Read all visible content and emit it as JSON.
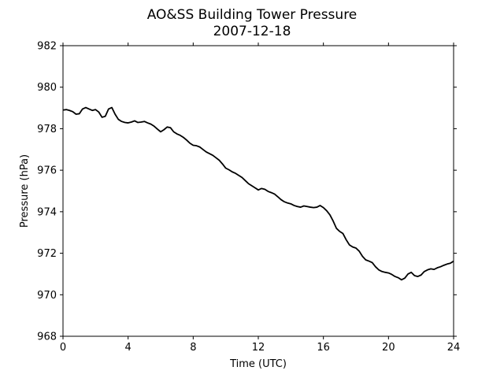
{
  "chart_data": {
    "type": "line",
    "title": "AO&SS Building Tower Pressure",
    "subtitle": "2007-12-18",
    "xlabel": "Time (UTC)",
    "ylabel": "Pressure (hPa)",
    "xlim": [
      0,
      24
    ],
    "ylim": [
      968,
      982
    ],
    "xticks": [
      0,
      4,
      8,
      12,
      16,
      20,
      24
    ],
    "yticks": [
      968,
      970,
      972,
      974,
      976,
      978,
      980,
      982
    ],
    "grid": false,
    "legend": "none",
    "line_color": "#000000",
    "series": [
      {
        "x": [
          0,
          0.2,
          0.4,
          0.6,
          0.8,
          1.0,
          1.2,
          1.4,
          1.6,
          1.8,
          2.0,
          2.2,
          2.4,
          2.6,
          2.8,
          3.0,
          3.2,
          3.4,
          3.6,
          3.8,
          4.0,
          4.2,
          4.4,
          4.6,
          4.8,
          5.0,
          5.2,
          5.4,
          5.6,
          5.8,
          6.0,
          6.2,
          6.4,
          6.6,
          6.8,
          7.0,
          7.2,
          7.4,
          7.6,
          7.8,
          8.0,
          8.2,
          8.4,
          8.6,
          8.8,
          9.0,
          9.2,
          9.4,
          9.6,
          9.8,
          10.0,
          10.2,
          10.4,
          10.6,
          10.8,
          11.0,
          11.2,
          11.4,
          11.6,
          11.8,
          12.0,
          12.2,
          12.4,
          12.6,
          12.8,
          13.0,
          13.2,
          13.4,
          13.6,
          13.8,
          14.0,
          14.2,
          14.4,
          14.6,
          14.8,
          15.0,
          15.2,
          15.4,
          15.6,
          15.8,
          16.0,
          16.2,
          16.4,
          16.6,
          16.8,
          17.0,
          17.2,
          17.4,
          17.6,
          17.8,
          18.0,
          18.2,
          18.4,
          18.6,
          18.8,
          19.0,
          19.2,
          19.4,
          19.6,
          19.8,
          20.0,
          20.2,
          20.4,
          20.6,
          20.8,
          21.0,
          21.2,
          21.4,
          21.6,
          21.8,
          22.0,
          22.2,
          22.4,
          22.6,
          22.8,
          23.0,
          23.2,
          23.4,
          23.6,
          23.8,
          24.0
        ],
        "values": [
          978.9,
          978.92,
          978.88,
          978.82,
          978.7,
          978.72,
          978.95,
          979.02,
          978.95,
          978.88,
          978.92,
          978.8,
          978.55,
          978.6,
          978.95,
          979.02,
          978.7,
          978.45,
          978.35,
          978.3,
          978.28,
          978.32,
          978.38,
          978.3,
          978.32,
          978.35,
          978.28,
          978.22,
          978.12,
          977.98,
          977.85,
          977.95,
          978.08,
          978.05,
          977.85,
          977.75,
          977.68,
          977.58,
          977.45,
          977.3,
          977.2,
          977.18,
          977.12,
          977.0,
          976.88,
          976.8,
          976.72,
          976.6,
          976.48,
          976.3,
          976.1,
          976.02,
          975.92,
          975.85,
          975.75,
          975.65,
          975.5,
          975.35,
          975.25,
          975.15,
          975.05,
          975.12,
          975.08,
          974.98,
          974.92,
          974.85,
          974.72,
          974.58,
          974.48,
          974.42,
          974.38,
          974.3,
          974.25,
          974.22,
          974.28,
          974.25,
          974.22,
          974.2,
          974.22,
          974.3,
          974.2,
          974.05,
          973.85,
          973.55,
          973.2,
          973.05,
          972.95,
          972.65,
          972.4,
          972.3,
          972.25,
          972.1,
          971.85,
          971.68,
          971.62,
          971.55,
          971.35,
          971.2,
          971.12,
          971.08,
          971.05,
          970.98,
          970.88,
          970.82,
          970.72,
          970.8,
          971.0,
          971.08,
          970.92,
          970.88,
          970.95,
          971.12,
          971.2,
          971.25,
          971.22,
          971.3,
          971.35,
          971.42,
          971.48,
          971.52,
          971.62
        ]
      }
    ]
  }
}
